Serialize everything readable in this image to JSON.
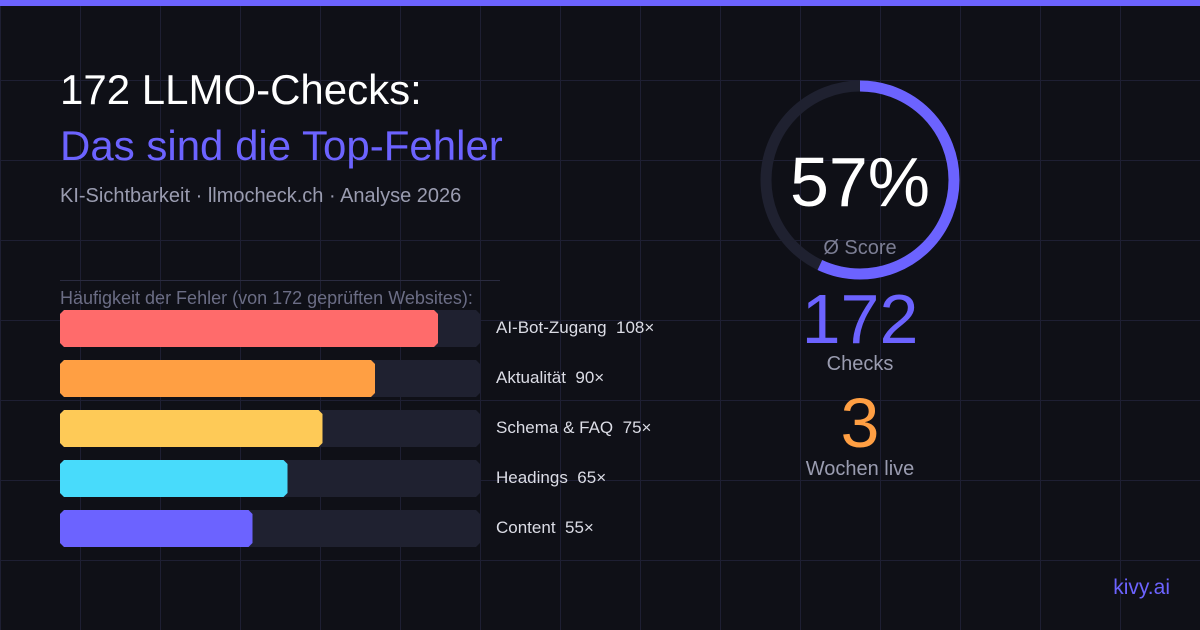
{
  "header": {
    "title_line1": "172 LLMO-Checks:",
    "title_line2": "Das sind die Top-Fehler",
    "subtitle": "KI-Sichtbarkeit · llmocheck.ch · Analyse 2026"
  },
  "colors": {
    "background": "#0f1017",
    "accent": "#6c63ff",
    "orange": "#ff9f43",
    "track": "#1f2130"
  },
  "chart_data": {
    "type": "bar",
    "orientation": "horizontal",
    "title": "Häufigkeit der Fehler (von 172 geprüften Websites):",
    "categories": [
      "AI-Bot-Zugang",
      "Aktualität",
      "Schema & FAQ",
      "Headings",
      "Content"
    ],
    "values": [
      108,
      90,
      75,
      65,
      55
    ],
    "value_labels": [
      "108×",
      "90×",
      "75×",
      "65×",
      "55×"
    ],
    "colors": [
      "#ff6b6b",
      "#ff9f43",
      "#feca57",
      "#48dbfb",
      "#6c63ff"
    ],
    "xlim": [
      0,
      120
    ],
    "grid": false
  },
  "score": {
    "value_label": "57%",
    "percent": 57,
    "label": "Ø Score"
  },
  "stats": [
    {
      "value": "172",
      "label": "Checks",
      "color": "#6c63ff"
    },
    {
      "value": "3",
      "label": "Wochen live",
      "color": "#ff9f43"
    }
  ],
  "brand": "kivy.ai"
}
